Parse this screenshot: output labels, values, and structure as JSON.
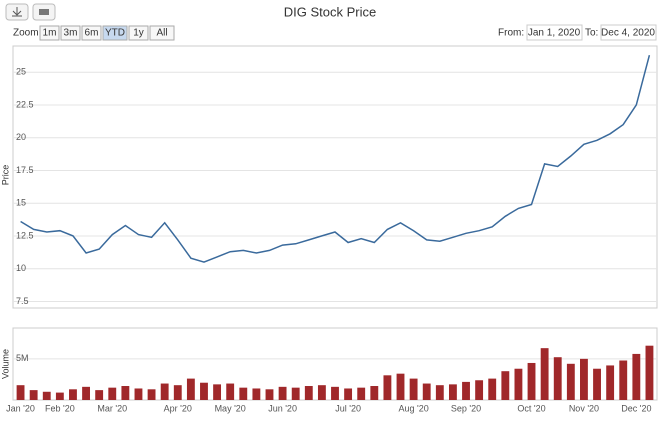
{
  "ui": {
    "zoom_label": "Zoom",
    "zoom_buttons": [
      "1m",
      "3m",
      "6m",
      "YTD",
      "1y",
      "All"
    ],
    "selected": "YTD",
    "from_label": "From:",
    "from": "Jan 1, 2020",
    "to_label": "To:",
    "to": "Dec 4, 2020"
  },
  "chart_data": [
    {
      "type": "line",
      "title": "DIG Stock Price",
      "y_label": "Price",
      "color": "#3a6a9c",
      "grid": true,
      "categories": [
        "Jan '20",
        null,
        null,
        "Feb '20",
        null,
        null,
        null,
        "Mar '20",
        null,
        null,
        null,
        null,
        "Apr '20",
        null,
        null,
        null,
        "May '20",
        null,
        null,
        null,
        "Jun '20",
        null,
        null,
        null,
        null,
        "Jul '20",
        null,
        null,
        null,
        null,
        "Aug '20",
        null,
        null,
        null,
        "Sep '20",
        null,
        null,
        null,
        null,
        "Oct '20",
        null,
        null,
        null,
        "Nov '20",
        null,
        null,
        null,
        "Dec '20",
        null
      ],
      "values": [
        13.6,
        13.0,
        12.8,
        12.9,
        12.5,
        11.2,
        11.5,
        12.6,
        13.3,
        12.6,
        12.4,
        13.5,
        12.2,
        10.8,
        10.5,
        10.9,
        11.3,
        11.4,
        11.2,
        11.4,
        11.8,
        11.9,
        12.2,
        12.5,
        12.8,
        12.0,
        12.3,
        12.0,
        13.0,
        13.5,
        12.9,
        12.2,
        12.1,
        12.4,
        12.7,
        12.9,
        13.2,
        14.0,
        14.6,
        14.9,
        18.0,
        17.8,
        18.6,
        19.5,
        19.8,
        20.3,
        21.0,
        22.5,
        26.3
      ],
      "ylim": [
        7,
        27
      ],
      "yticks": [
        7.5,
        10,
        12.5,
        15,
        17.5,
        20,
        22.5,
        25
      ]
    },
    {
      "type": "bar",
      "y_label": "Volume",
      "color": "#a0282a",
      "values": [
        1800000,
        1200000,
        1000000,
        900000,
        1300000,
        1600000,
        1200000,
        1500000,
        1700000,
        1400000,
        1300000,
        2000000,
        1800000,
        2600000,
        2100000,
        1900000,
        2000000,
        1500000,
        1400000,
        1300000,
        1600000,
        1500000,
        1700000,
        1800000,
        1600000,
        1400000,
        1500000,
        1700000,
        3000000,
        3200000,
        2600000,
        2000000,
        1800000,
        1900000,
        2200000,
        2400000,
        2600000,
        3500000,
        3800000,
        4500000,
        6300000,
        5200000,
        4400000,
        5000000,
        3800000,
        4200000,
        4800000,
        5600000,
        6600000
      ],
      "ylim": [
        0,
        8750000
      ],
      "yticks": [
        {
          "value": 5000000,
          "label": "5M"
        }
      ]
    }
  ]
}
